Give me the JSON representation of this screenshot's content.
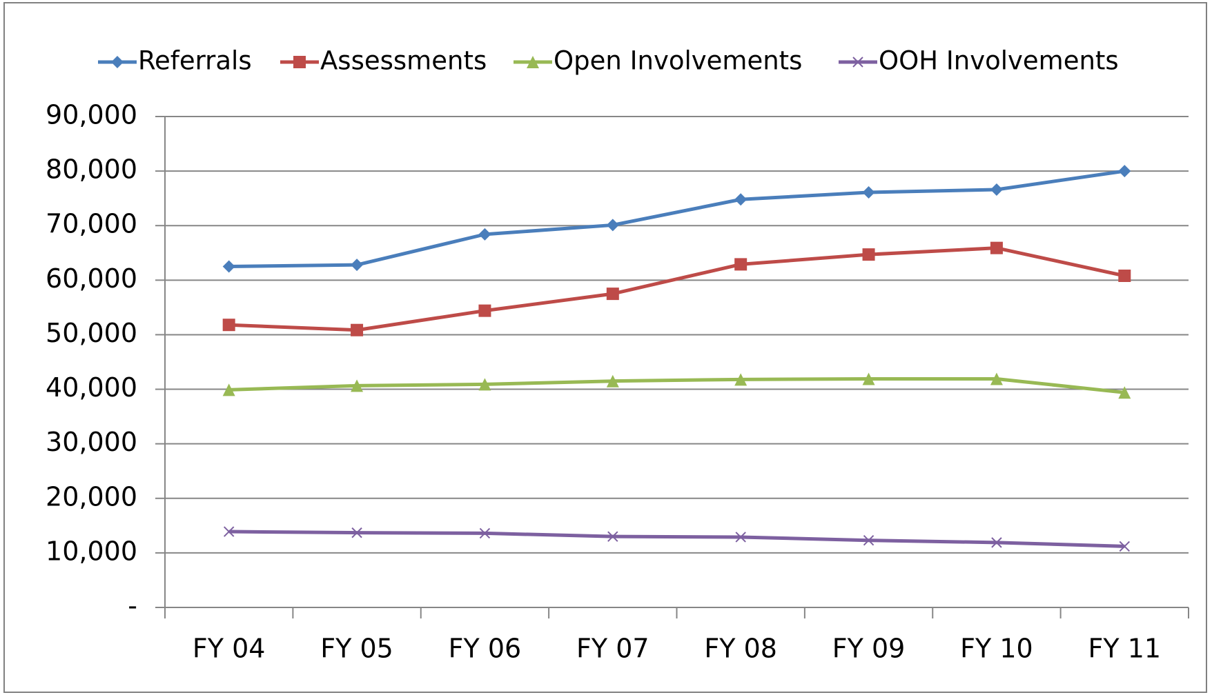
{
  "chart_data": {
    "type": "line",
    "categories": [
      "FY 04",
      "FY 05",
      "FY 06",
      "FY 07",
      "FY 08",
      "FY 09",
      "FY 10",
      "FY 11"
    ],
    "series": [
      {
        "name": "Referrals",
        "color": "#4a7ebb",
        "marker": "diamond",
        "values": [
          62500,
          62800,
          68400,
          70100,
          74800,
          76100,
          76600,
          80000
        ]
      },
      {
        "name": "Assessments",
        "color": "#be4b48",
        "marker": "square",
        "values": [
          51800,
          50850,
          54400,
          57500,
          62900,
          64700,
          65900,
          60800
        ]
      },
      {
        "name": "Open Involvements",
        "color": "#98b954",
        "marker": "triangle",
        "values": [
          39900,
          40650,
          40900,
          41500,
          41800,
          41900,
          41900,
          39400
        ]
      },
      {
        "name": "OOH Involvements",
        "color": "#7d60a0",
        "marker": "x",
        "values": [
          13900,
          13700,
          13600,
          13000,
          12900,
          12300,
          11900,
          11200
        ]
      }
    ],
    "ylim": [
      0,
      90000
    ],
    "yticks": [
      {
        "value": 0,
        "label": "-"
      },
      {
        "value": 10000,
        "label": "10,000"
      },
      {
        "value": 20000,
        "label": "20,000"
      },
      {
        "value": 30000,
        "label": "30,000"
      },
      {
        "value": 40000,
        "label": "40,000"
      },
      {
        "value": 50000,
        "label": "50,000"
      },
      {
        "value": 60000,
        "label": "60,000"
      },
      {
        "value": 70000,
        "label": "70,000"
      },
      {
        "value": 80000,
        "label": "80,000"
      },
      {
        "value": 90000,
        "label": "90,000"
      }
    ],
    "grid": true,
    "legend": "top"
  }
}
